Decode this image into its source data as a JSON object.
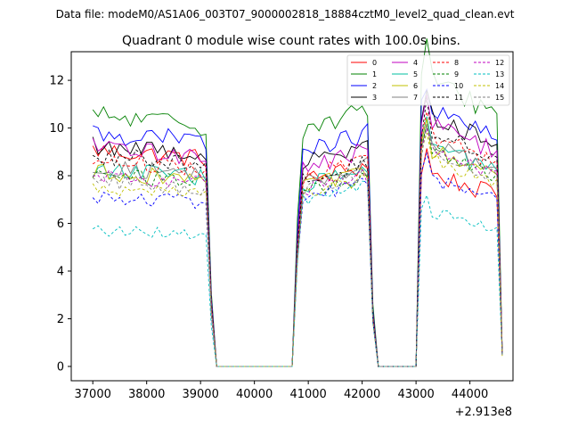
{
  "figure": {
    "suptitle": "Data file: modeM0/AS1A06_003T07_9000002818_18884cztM0_level2_quad_clean.evt",
    "title": "Quadrant 0 module wise count rates with 100.0s bins.",
    "x_offset_label": "+2.913e8"
  },
  "chart_data": {
    "type": "line",
    "title": "Quadrant 0 module wise count rates with 100.0s bins.",
    "xlabel": "",
    "ylabel": "",
    "x_offset": 291300000,
    "xlim": [
      36600,
      44800
    ],
    "ylim": [
      -0.6,
      13.2
    ],
    "xticks": [
      37000,
      38000,
      39000,
      40000,
      41000,
      42000,
      43000,
      44000
    ],
    "xtick_labels": [
      "37000",
      "38000",
      "39000",
      "40000",
      "41000",
      "42000",
      "43000",
      "44000"
    ],
    "yticks": [
      0,
      2,
      4,
      6,
      8,
      10,
      12
    ],
    "ytick_labels": [
      "0",
      "2",
      "4",
      "6",
      "8",
      "10",
      "12"
    ],
    "grid": false,
    "legend_position": "top-right",
    "legend_columns": 4,
    "segments": [
      {
        "start": 37000,
        "end": 39100
      },
      {
        "start": 40900,
        "end": 42100
      },
      {
        "start": 43100,
        "end": 44500
      }
    ],
    "gaps": [
      {
        "start": 39300,
        "end": 40700
      },
      {
        "start": 42300,
        "end": 43000
      }
    ],
    "series": [
      {
        "name": "0",
        "color": "#ff0000",
        "dash": "solid",
        "levels": [
          8.9,
          8.1,
          7.6
        ]
      },
      {
        "name": "1",
        "color": "#008000",
        "dash": "solid",
        "levels": [
          10.3,
          10.4,
          11.3
        ]
      },
      {
        "name": "2",
        "color": "#0000ff",
        "dash": "solid",
        "levels": [
          9.6,
          9.4,
          10.1
        ]
      },
      {
        "name": "3",
        "color": "#000000",
        "dash": "solid",
        "levels": [
          9.1,
          8.9,
          9.9
        ]
      },
      {
        "name": "4",
        "color": "#c000c0",
        "dash": "solid",
        "levels": [
          9.0,
          8.7,
          9.6
        ]
      },
      {
        "name": "5",
        "color": "#00bfa0",
        "dash": "solid",
        "levels": [
          8.1,
          7.9,
          8.7
        ]
      },
      {
        "name": "6",
        "color": "#c0c000",
        "dash": "solid",
        "levels": [
          8.0,
          7.8,
          8.5
        ]
      },
      {
        "name": "7",
        "color": "#808080",
        "dash": "solid",
        "levels": [
          8.2,
          8.1,
          8.8
        ]
      },
      {
        "name": "8",
        "color": "#ff0000",
        "dash": "dashed",
        "levels": [
          8.5,
          8.3,
          9.1
        ]
      },
      {
        "name": "9",
        "color": "#008000",
        "dash": "dashed",
        "levels": [
          7.9,
          7.6,
          8.5
        ]
      },
      {
        "name": "10",
        "color": "#0000ff",
        "dash": "dashed",
        "levels": [
          7.0,
          7.4,
          7.4
        ]
      },
      {
        "name": "11",
        "color": "#000000",
        "dash": "dashed",
        "levels": [
          8.7,
          8.2,
          9.2
        ]
      },
      {
        "name": "12",
        "color": "#c000c0",
        "dash": "dashed",
        "levels": [
          7.8,
          7.7,
          8.6
        ]
      },
      {
        "name": "13",
        "color": "#00bfc0",
        "dash": "dashed",
        "levels": [
          5.6,
          7.3,
          6.1
        ]
      },
      {
        "name": "14",
        "color": "#c0c000",
        "dash": "dashed",
        "levels": [
          7.4,
          7.5,
          8.2
        ]
      },
      {
        "name": "15",
        "color": "#808080",
        "dash": "dashed",
        "levels": [
          7.6,
          7.7,
          8.4
        ]
      }
    ]
  }
}
